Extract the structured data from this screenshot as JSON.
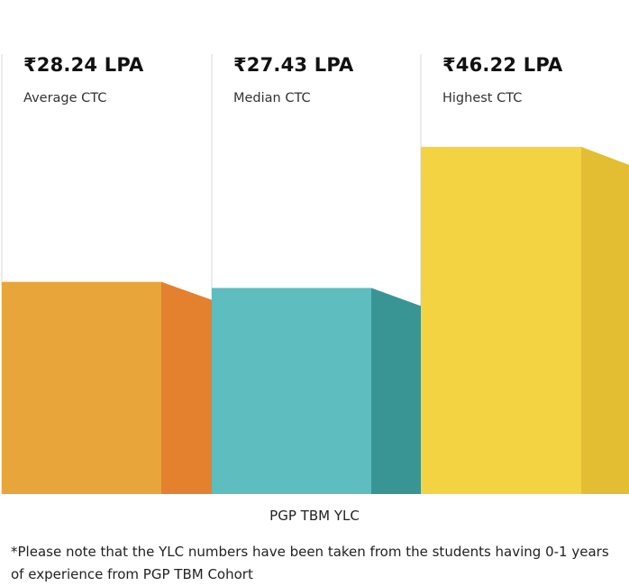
{
  "chart_data": {
    "type": "bar",
    "categories": [
      "Average CTC",
      "Median CTC",
      "Highest CTC"
    ],
    "values": [
      28.24,
      27.43,
      46.22
    ],
    "value_labels": [
      "₹28.24 LPA",
      "₹27.43 LPA",
      "₹46.22 LPA"
    ],
    "xlabel": "PGP TBM YLC",
    "ylabel": "",
    "ylim": [
      0,
      60
    ],
    "grid": false,
    "legend": "none",
    "colors": [
      {
        "front": "#E8A53A",
        "side": "#E3812F"
      },
      {
        "front": "#5EBDBE",
        "side": "#389594"
      },
      {
        "front": "#F4D343",
        "side": "#E3BE33"
      }
    ],
    "separator_color": "#D9D9D9"
  },
  "footnote": "*Please note that the YLC numbers have been taken from the students having 0-1 years of experience from PGP TBM Cohort"
}
